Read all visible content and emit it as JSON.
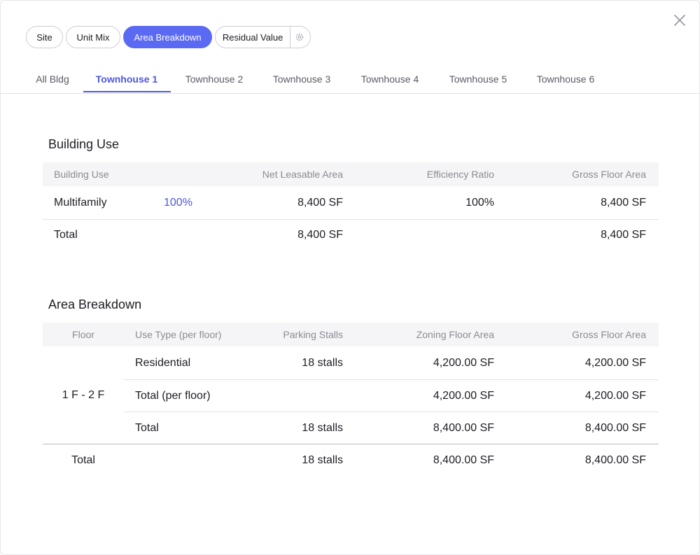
{
  "pills": [
    "Site",
    "Unit Mix",
    "Area Breakdown",
    "Residual Value"
  ],
  "tabs": [
    "All Bldg",
    "Townhouse 1",
    "Townhouse 2",
    "Townhouse 3",
    "Townhouse 4",
    "Townhouse 5",
    "Townhouse 6"
  ],
  "building_use": {
    "title": "Building Use",
    "header": [
      "Building Use",
      "Net Leasable Area",
      "Efficiency Ratio",
      "Gross Floor Area"
    ],
    "rows": [
      {
        "use": "Multifamily",
        "share": "100%",
        "net_leasable_area": "8,400 SF",
        "efficiency_ratio": "100%",
        "gross_floor_area": "8,400 SF"
      }
    ],
    "total": {
      "label": "Total",
      "net_leasable_area": "8,400 SF",
      "gross_floor_area": "8,400 SF"
    }
  },
  "area_breakdown": {
    "title": "Area Breakdown",
    "header": [
      "Floor",
      "Use Type (per floor)",
      "Parking Stalls",
      "Zoning Floor Area",
      "Gross Floor Area"
    ],
    "floor": "1 F - 2 F",
    "rows": [
      {
        "use": "Residential",
        "stalls": "18 stalls",
        "zoning_floor_area": "4,200.00 SF",
        "gross_floor_area": "4,200.00 SF"
      },
      {
        "use": "Total (per floor)",
        "zoning_floor_area": "4,200.00 SF",
        "gross_floor_area": "4,200.00 SF"
      },
      {
        "use": "Total",
        "stalls": "18 stalls",
        "zoning_floor_area": "8,400.00 SF",
        "gross_floor_area": "8,400.00 SF"
      }
    ],
    "total": {
      "label": "Total",
      "stalls": "18 stalls",
      "zoning_floor_area": "8,400.00 SF",
      "gross_floor_area": "8,400.00 SF"
    }
  }
}
